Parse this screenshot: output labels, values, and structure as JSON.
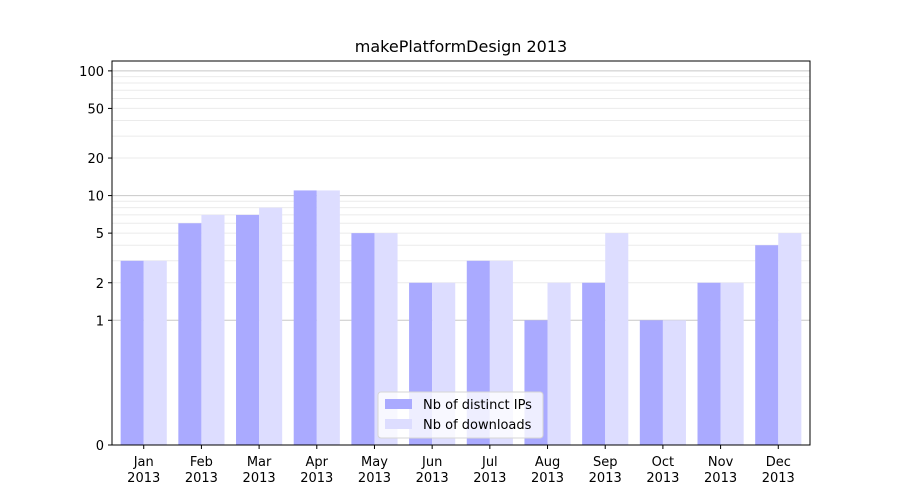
{
  "chart_data": {
    "type": "bar",
    "title": "makePlatformDesign 2013",
    "xlabel": "",
    "ylabel": "",
    "y_scale": "symlog",
    "ylim": [
      0,
      120
    ],
    "grid": "y",
    "legend_position": "lower center",
    "categories": [
      [
        "Jan",
        "2013"
      ],
      [
        "Feb",
        "2013"
      ],
      [
        "Mar",
        "2013"
      ],
      [
        "Apr",
        "2013"
      ],
      [
        "May",
        "2013"
      ],
      [
        "Jun",
        "2013"
      ],
      [
        "Jul",
        "2013"
      ],
      [
        "Aug",
        "2013"
      ],
      [
        "Sep",
        "2013"
      ],
      [
        "Oct",
        "2013"
      ],
      [
        "Nov",
        "2013"
      ],
      [
        "Dec",
        "2013"
      ]
    ],
    "y_ticks": [
      0,
      1,
      2,
      5,
      10,
      20,
      50,
      100
    ],
    "series": [
      {
        "name": "Nb of distinct IPs",
        "color": "#aaaaff",
        "values": [
          3,
          6,
          7,
          11,
          5,
          2,
          3,
          1,
          2,
          1,
          2,
          4
        ]
      },
      {
        "name": "Nb of downloads",
        "color": "#ddddff",
        "values": [
          3,
          7,
          8,
          11,
          5,
          2,
          3,
          2,
          5,
          1,
          2,
          5
        ]
      }
    ]
  }
}
